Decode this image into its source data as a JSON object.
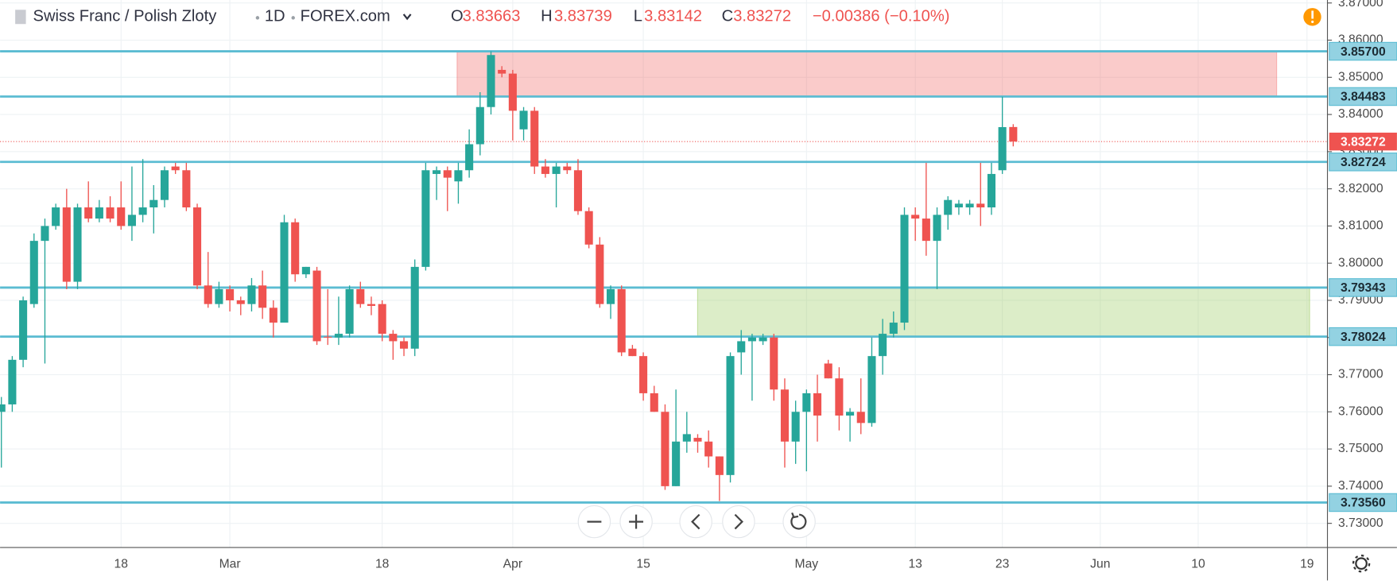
{
  "chart_data": {
    "type": "candlestick",
    "symbol": "Swiss Franc / Polish Zloty",
    "interval": "1D",
    "exchange": "FOREX.com",
    "ohlc_labels": [
      "O",
      "H",
      "L",
      "C"
    ],
    "change": "−0.00386 (−0.10%)",
    "up_color": "#26a69a",
    "down_color": "#ef5350",
    "level_color": "#5bbcd2",
    "grid": true,
    "categories": [
      null,
      null,
      null,
      null,
      null,
      null,
      null,
      null,
      null,
      null,
      null,
      "18",
      null,
      null,
      null,
      null,
      null,
      null,
      null,
      null,
      null,
      "Mar",
      null,
      null,
      null,
      null,
      null,
      null,
      null,
      null,
      null,
      null,
      null,
      null,
      null,
      "18",
      null,
      null,
      null,
      null,
      null,
      null,
      null,
      null,
      null,
      null,
      null,
      "Apr",
      null,
      null,
      null,
      null,
      null,
      null,
      null,
      null,
      null,
      null,
      null,
      "15",
      null,
      null,
      null,
      null,
      null,
      null,
      null,
      null,
      null,
      null,
      null,
      null,
      null,
      null,
      "May",
      null,
      null,
      null,
      null,
      null,
      null,
      null,
      null,
      null,
      "13",
      null,
      null,
      null,
      null,
      null,
      null,
      null,
      "23",
      null,
      null,
      null,
      null,
      null,
      null,
      null,
      null,
      "Jun",
      null,
      null,
      null,
      null,
      null,
      null,
      null,
      null,
      "10",
      null,
      null,
      null,
      null,
      null,
      null,
      null,
      null,
      null,
      "19",
      null
    ],
    "open": [
      3.76,
      3.762,
      3.774,
      3.789,
      3.806,
      3.81,
      3.815,
      3.795,
      3.815,
      3.812,
      3.815,
      3.815,
      3.81,
      3.813,
      3.815,
      3.817,
      3.826,
      3.825,
      3.815,
      3.794,
      3.789,
      3.793,
      3.79,
      3.789,
      3.794,
      3.788,
      3.784,
      3.811,
      3.797,
      3.798,
      3.7802,
      3.78,
      3.781,
      3.793,
      3.789,
      3.789,
      3.781,
      3.779,
      3.777,
      3.799,
      3.824,
      3.825,
      3.822,
      3.825,
      3.832,
      3.842,
      3.852,
      3.851,
      3.836,
      3.841,
      3.826,
      3.824,
      3.826,
      3.825,
      3.814,
      3.805,
      3.789,
      3.793,
      3.777,
      3.775,
      3.765,
      3.76,
      3.74,
      3.752,
      3.753,
      3.752,
      3.748,
      3.743,
      3.776,
      3.779,
      3.779,
      3.78,
      3.766,
      3.752,
      3.76,
      3.765,
      3.773,
      3.769,
      3.759,
      3.76,
      3.757,
      3.775,
      3.781,
      3.784,
      3.813,
      3.812,
      3.806,
      3.813,
      3.815,
      3.815,
      3.816,
      3.815,
      3.825,
      3.83663,
      null,
      null,
      null,
      null,
      null,
      null,
      null,
      null,
      null,
      null,
      null,
      null,
      null,
      null,
      null,
      null,
      null,
      null,
      null,
      null,
      null,
      null,
      null,
      null,
      null,
      null,
      null,
      null
    ],
    "high": [
      3.764,
      3.775,
      3.791,
      3.808,
      3.812,
      3.816,
      3.82,
      3.816,
      3.822,
      3.817,
      3.818,
      3.822,
      3.826,
      3.828,
      3.821,
      3.826,
      3.827,
      3.827,
      3.816,
      3.803,
      3.795,
      3.794,
      3.791,
      3.796,
      3.798,
      3.79,
      3.813,
      3.812,
      3.799,
      3.799,
      3.793,
      3.791,
      3.794,
      3.795,
      3.791,
      3.79,
      3.782,
      3.78,
      3.801,
      3.827,
      3.826,
      3.826,
      3.827,
      3.836,
      3.846,
      3.857,
      3.853,
      3.852,
      3.842,
      3.842,
      3.828,
      3.827,
      3.827,
      3.828,
      3.815,
      3.807,
      3.794,
      3.794,
      3.778,
      3.776,
      3.767,
      3.762,
      3.766,
      3.76,
      3.754,
      3.755,
      3.748,
      3.776,
      3.782,
      3.781,
      3.781,
      3.781,
      3.769,
      3.763,
      3.766,
      3.77,
      3.774,
      3.772,
      3.761,
      3.769,
      3.78,
      3.785,
      3.787,
      3.815,
      3.815,
      3.827,
      3.815,
      3.818,
      3.817,
      3.817,
      3.827,
      3.827,
      3.8448,
      3.83739,
      null,
      null,
      null,
      null,
      null,
      null,
      null,
      null,
      null,
      null,
      null,
      null,
      null,
      null,
      null,
      null,
      null,
      null,
      null,
      null,
      null,
      null,
      null,
      null,
      null,
      null,
      null,
      null
    ],
    "low": [
      3.745,
      3.76,
      3.772,
      3.788,
      3.773,
      3.809,
      3.793,
      3.793,
      3.811,
      3.811,
      3.811,
      3.809,
      3.806,
      3.811,
      3.808,
      3.815,
      3.824,
      3.814,
      3.793,
      3.788,
      3.788,
      3.787,
      3.786,
      3.787,
      3.785,
      3.78,
      3.784,
      3.795,
      3.796,
      3.778,
      3.778,
      3.778,
      3.78,
      3.788,
      3.786,
      3.779,
      3.774,
      3.775,
      3.775,
      3.798,
      3.817,
      3.814,
      3.816,
      3.823,
      3.829,
      3.84,
      3.85,
      3.833,
      3.833,
      3.824,
      3.823,
      3.815,
      3.824,
      3.813,
      3.804,
      3.788,
      3.785,
      3.775,
      3.775,
      3.763,
      3.76,
      3.739,
      3.74,
      3.749,
      3.749,
      3.745,
      3.736,
      3.741,
      3.77,
      3.763,
      3.778,
      3.763,
      3.745,
      3.746,
      3.744,
      3.752,
      3.769,
      3.755,
      3.752,
      3.754,
      3.756,
      3.77,
      3.78,
      3.782,
      3.806,
      3.802,
      3.793,
      3.809,
      3.813,
      3.813,
      3.81,
      3.813,
      3.824,
      3.83142,
      null,
      null,
      null,
      null,
      null,
      null,
      null,
      null,
      null,
      null,
      null,
      null,
      null,
      null,
      null,
      null,
      null,
      null,
      null,
      null,
      null,
      null,
      null,
      null,
      null,
      null,
      null,
      null
    ],
    "close": [
      3.762,
      3.774,
      3.79,
      3.806,
      3.81,
      3.815,
      3.795,
      3.815,
      3.812,
      3.815,
      3.812,
      3.81,
      3.813,
      3.815,
      3.817,
      3.825,
      3.825,
      3.815,
      3.794,
      3.789,
      3.793,
      3.79,
      3.789,
      3.794,
      3.788,
      3.784,
      3.811,
      3.797,
      3.799,
      3.779,
      3.78,
      3.781,
      3.793,
      3.789,
      3.7885,
      3.781,
      3.779,
      3.777,
      3.799,
      3.825,
      3.825,
      3.823,
      3.825,
      3.832,
      3.842,
      3.856,
      3.851,
      3.841,
      3.841,
      3.826,
      3.824,
      3.826,
      3.825,
      3.814,
      3.805,
      3.789,
      3.793,
      3.776,
      3.775,
      3.765,
      3.76,
      3.74,
      3.752,
      3.754,
      3.752,
      3.748,
      3.743,
      3.775,
      3.779,
      3.78,
      3.78,
      3.766,
      3.752,
      3.76,
      3.765,
      3.759,
      3.769,
      3.759,
      3.76,
      3.757,
      3.775,
      3.781,
      3.784,
      3.813,
      3.812,
      3.806,
      3.813,
      3.817,
      3.816,
      3.816,
      3.815,
      3.824,
      3.8366,
      3.83272,
      null,
      null,
      null,
      null,
      null,
      null,
      null,
      null,
      null,
      null,
      null,
      null,
      null,
      null,
      null,
      null,
      null,
      null,
      null,
      null,
      null,
      null,
      null,
      null,
      null,
      null,
      null,
      null
    ],
    "ylim": [
      3.7235,
      3.8708
    ],
    "yticks": [
      {
        "value": 3.73,
        "label": "3.73000"
      },
      {
        "value": 3.74,
        "label": "3.74000"
      },
      {
        "value": 3.75,
        "label": "3.75000"
      },
      {
        "value": 3.76,
        "label": "3.76000"
      },
      {
        "value": 3.77,
        "label": "3.77000"
      },
      {
        "value": 3.78,
        "label": "3.78000"
      },
      {
        "value": 3.79,
        "label": "3.79000"
      },
      {
        "value": 3.8,
        "label": "3.80000"
      },
      {
        "value": 3.81,
        "label": "3.81000"
      },
      {
        "value": 3.82,
        "label": "3.82000"
      },
      {
        "value": 3.83,
        "label": "3.83000"
      },
      {
        "value": 3.84,
        "label": "3.84000"
      },
      {
        "value": 3.85,
        "label": "3.85000"
      },
      {
        "value": 3.86,
        "label": "3.86000"
      },
      {
        "value": 3.87,
        "label": "3.87000"
      }
    ],
    "levels": [
      {
        "value": 3.857,
        "label": "3.85700"
      },
      {
        "value": 3.84483,
        "label": "3.84483"
      },
      {
        "value": 3.82724,
        "label": "3.82724"
      },
      {
        "value": 3.79343,
        "label": "3.79343"
      },
      {
        "value": 3.78024,
        "label": "3.78024"
      },
      {
        "value": 3.7356,
        "label": "3.73560"
      }
    ]
  }
}
